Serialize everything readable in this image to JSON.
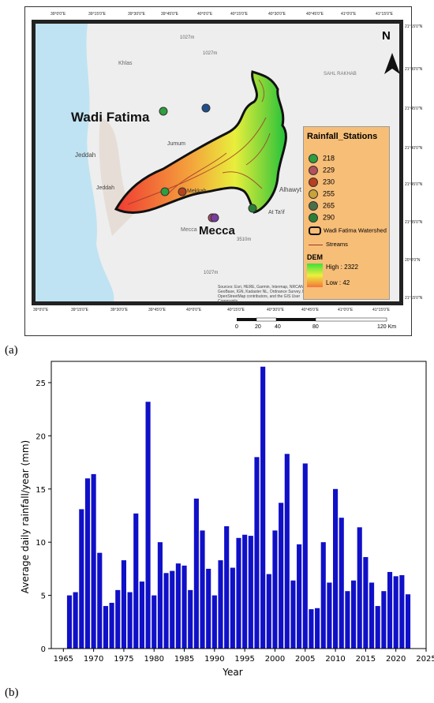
{
  "panel_a_label": "(a)",
  "panel_b_label": "(b)",
  "map": {
    "title_wadi": "Wadi Fatima",
    "title_mecca": "Mecca",
    "north": "N",
    "top_ticks": [
      "39°0'0\"E",
      "39°15'0\"E",
      "39°30'0\"E",
      "39°45'0\"E",
      "40°0'0\"E",
      "40°15'0\"E",
      "40°30'0\"E",
      "40°45'0\"E",
      "41°0'0\"E",
      "41°15'0\"E"
    ],
    "bottom_ticks": [
      "39°0'0\"E",
      "39°15'0\"E",
      "39°30'0\"E",
      "39°45'0\"E",
      "40°0'0\"E",
      "40°15'0\"E",
      "40°30'0\"E",
      "40°45'0\"E",
      "41°0'0\"E",
      "41°15'0\"E"
    ],
    "right_ticks": [
      "21°15'0\"N",
      "21°30'0\"N",
      "21°45'0\"N",
      "21°40'0\"N",
      "21°45'0\"N",
      "21°35'0\"N",
      "20°0'0\"N",
      "21°15'0\"N"
    ],
    "places": [
      "Jeddah",
      "Jeddah",
      "Khlas",
      "Mecca",
      "At Ta'if",
      "Alhawyt",
      "SAHL RAKHAB",
      "Mekkah",
      "Jumum",
      "1027m",
      "1027m",
      "3510m",
      "1027m"
    ],
    "attribution": "Sources: Esri, HERE, Garmin, Intermap, NRCAN, GeoBase, IGN, Kadaster NL, Ordnance Survey, Kongji, (c) OpenStreetMap contributors, and the GIS User Community",
    "scale_labels": [
      "0",
      "20",
      "40",
      "80",
      "120 Km"
    ],
    "legend": {
      "title": "Rainfall_Stations",
      "stations": [
        {
          "label": "218",
          "color": "#2e9e3e"
        },
        {
          "label": "229",
          "color": "#b5505e"
        },
        {
          "label": "230",
          "color": "#b8401e"
        },
        {
          "label": "255",
          "color": "#c9a23a"
        },
        {
          "label": "265",
          "color": "#4a6e48"
        },
        {
          "label": "290",
          "color": "#2a7f36"
        }
      ],
      "watershed": "Wadi Fatima Watershed",
      "streams": "Streams",
      "dem": "DEM",
      "dem_high": "High : 2322",
      "dem_low": "Low : 42"
    }
  },
  "chart_data": {
    "type": "bar",
    "xlabel": "Year",
    "ylabel": "Average daily rainfall/year (mm)",
    "ylim": [
      0,
      27
    ],
    "xlim": [
      1963,
      2025
    ],
    "xticks": [
      1965,
      1970,
      1975,
      1980,
      1985,
      1990,
      1995,
      2000,
      2005,
      2010,
      2015,
      2020,
      2025
    ],
    "yticks": [
      0,
      5,
      10,
      15,
      20,
      25
    ],
    "bar_color": "#1010c8",
    "x": [
      1966,
      1967,
      1968,
      1969,
      1970,
      1971,
      1972,
      1973,
      1974,
      1975,
      1976,
      1977,
      1978,
      1979,
      1980,
      1981,
      1982,
      1983,
      1984,
      1985,
      1986,
      1987,
      1988,
      1989,
      1990,
      1991,
      1992,
      1993,
      1994,
      1995,
      1996,
      1997,
      1998,
      1999,
      2000,
      2001,
      2002,
      2003,
      2004,
      2005,
      2006,
      2007,
      2008,
      2009,
      2010,
      2011,
      2012,
      2013,
      2014,
      2015,
      2016,
      2017,
      2018,
      2019,
      2020,
      2021,
      2022
    ],
    "values": [
      5.0,
      5.3,
      13.1,
      16.0,
      16.4,
      9.0,
      4.0,
      4.3,
      5.5,
      8.3,
      5.3,
      12.7,
      6.3,
      23.2,
      5.0,
      10.0,
      7.1,
      7.3,
      8.0,
      7.8,
      5.5,
      14.1,
      11.1,
      7.5,
      5.0,
      8.3,
      11.5,
      7.6,
      10.4,
      10.7,
      10.6,
      18.0,
      26.5,
      7.0,
      11.1,
      13.7,
      18.3,
      6.4,
      9.8,
      17.4,
      3.7,
      3.8,
      10.0,
      6.2,
      15.0,
      12.3,
      5.4,
      6.4,
      11.4,
      8.6,
      6.2,
      4.0,
      5.4,
      7.2,
      6.8,
      6.9,
      5.1
    ]
  }
}
